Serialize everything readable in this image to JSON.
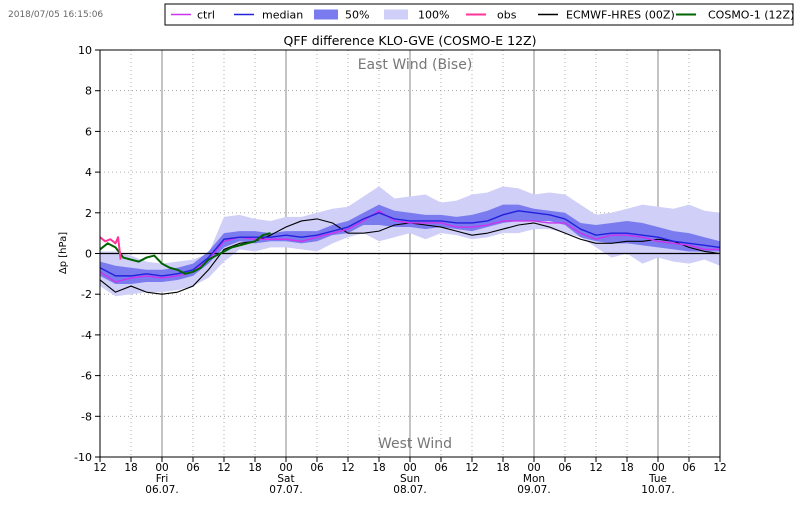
{
  "timestamp": "2018/07/05 16:15:06",
  "chart_data": {
    "type": "line",
    "title": "QFF difference KLO-GVE (COSMO-E 12Z)",
    "xlabel": "",
    "ylabel": "Δp [hPa]",
    "ylim": [
      -10,
      10
    ],
    "xlim_hours": [
      0,
      120
    ],
    "grid": true,
    "legend_position": "top",
    "annotations": {
      "top": "East Wind (Bise)",
      "bottom": "West Wind"
    },
    "y_ticks": [
      -10,
      -8,
      -6,
      -4,
      -2,
      0,
      2,
      4,
      6,
      8,
      10
    ],
    "x_ticks": [
      {
        "h": 0,
        "label": "12"
      },
      {
        "h": 6,
        "label": "18"
      },
      {
        "h": 12,
        "label": "00",
        "day": "Fri",
        "date": "06.07."
      },
      {
        "h": 18,
        "label": "06"
      },
      {
        "h": 24,
        "label": "12"
      },
      {
        "h": 30,
        "label": "18"
      },
      {
        "h": 36,
        "label": "00",
        "day": "Sat",
        "date": "07.07."
      },
      {
        "h": 42,
        "label": "06"
      },
      {
        "h": 48,
        "label": "12"
      },
      {
        "h": 54,
        "label": "18"
      },
      {
        "h": 60,
        "label": "00",
        "day": "Sun",
        "date": "08.07."
      },
      {
        "h": 66,
        "label": "06"
      },
      {
        "h": 72,
        "label": "12"
      },
      {
        "h": 78,
        "label": "18"
      },
      {
        "h": 84,
        "label": "00",
        "day": "Mon",
        "date": "09.07."
      },
      {
        "h": 90,
        "label": "06"
      },
      {
        "h": 96,
        "label": "12"
      },
      {
        "h": 102,
        "label": "18"
      },
      {
        "h": 108,
        "label": "00",
        "day": "Tue",
        "date": "10.07."
      },
      {
        "h": 114,
        "label": "06"
      },
      {
        "h": 120,
        "label": "12"
      }
    ],
    "legend": [
      {
        "key": "ctrl",
        "label": "ctrl",
        "kind": "line",
        "color": "#cc33ee"
      },
      {
        "key": "median",
        "label": "median",
        "kind": "line",
        "color": "#2222dd"
      },
      {
        "key": "p50",
        "label": "50%",
        "kind": "patch",
        "color": "#7b7bf0"
      },
      {
        "key": "p100",
        "label": "100%",
        "kind": "patch",
        "color": "#cfcff8"
      },
      {
        "key": "obs",
        "label": "obs",
        "kind": "line",
        "color": "#ff3399"
      },
      {
        "key": "ecmwf",
        "label": "ECMWF-HRES (00Z)",
        "kind": "line",
        "color": "#000000"
      },
      {
        "key": "cosmo1",
        "label": "COSMO-1 (12Z)",
        "kind": "line",
        "color": "#006400"
      }
    ],
    "series": [
      {
        "name": "100% band",
        "x": [
          0,
          3,
          6,
          9,
          12,
          15,
          18,
          21,
          24,
          27,
          30,
          33,
          36,
          39,
          42,
          45,
          48,
          51,
          54,
          57,
          60,
          63,
          66,
          69,
          72,
          75,
          78,
          81,
          84,
          87,
          90,
          93,
          96,
          99,
          102,
          105,
          108,
          111,
          114,
          117,
          120
        ],
        "low": [
          -1.6,
          -2.1,
          -2.0,
          -1.9,
          -1.9,
          -1.8,
          -1.6,
          -1.2,
          -0.4,
          0.2,
          0.1,
          0.3,
          0.3,
          0.2,
          0.1,
          0.5,
          0.8,
          1.0,
          0.6,
          0.8,
          1.0,
          0.7,
          1.0,
          0.9,
          0.7,
          0.8,
          1.0,
          1.0,
          1.2,
          1.2,
          1.0,
          0.8,
          0.3,
          -0.2,
          0.0,
          -0.5,
          -0.2,
          -0.4,
          -0.5,
          -0.3,
          -0.6
        ],
        "high": [
          0.1,
          0.1,
          -0.1,
          -0.4,
          -0.5,
          -0.4,
          -0.3,
          0.0,
          1.8,
          1.9,
          1.7,
          1.6,
          1.8,
          1.8,
          2.0,
          2.2,
          2.3,
          2.8,
          3.3,
          2.7,
          2.8,
          2.9,
          2.5,
          2.6,
          2.9,
          3.0,
          3.3,
          3.2,
          2.9,
          3.0,
          2.9,
          2.4,
          1.9,
          2.0,
          2.2,
          2.4,
          2.3,
          2.2,
          2.4,
          2.1,
          2.0
        ]
      },
      {
        "name": "50% band",
        "x": [
          0,
          3,
          6,
          9,
          12,
          15,
          18,
          21,
          24,
          27,
          30,
          33,
          36,
          39,
          42,
          45,
          48,
          51,
          54,
          57,
          60,
          63,
          66,
          69,
          72,
          75,
          78,
          81,
          84,
          87,
          90,
          93,
          96,
          99,
          102,
          105,
          108,
          111,
          114,
          117,
          120
        ],
        "low": [
          -1.1,
          -1.5,
          -1.5,
          -1.4,
          -1.4,
          -1.3,
          -1.1,
          -0.5,
          0.3,
          0.6,
          0.5,
          0.6,
          0.6,
          0.5,
          0.6,
          0.9,
          1.0,
          1.4,
          1.4,
          1.3,
          1.3,
          1.2,
          1.3,
          1.2,
          1.1,
          1.3,
          1.5,
          1.6,
          1.6,
          1.6,
          1.4,
          0.8,
          0.6,
          0.5,
          0.5,
          0.4,
          0.3,
          0.2,
          0.1,
          0.1,
          0.1
        ],
        "high": [
          -0.4,
          -0.6,
          -0.7,
          -0.8,
          -0.8,
          -0.7,
          -0.5,
          0.1,
          1.0,
          1.1,
          1.1,
          1.0,
          1.1,
          1.1,
          1.1,
          1.4,
          1.6,
          2.0,
          2.4,
          2.1,
          2.0,
          1.9,
          1.9,
          1.8,
          1.9,
          2.1,
          2.4,
          2.4,
          2.2,
          2.1,
          2.0,
          1.5,
          1.4,
          1.5,
          1.6,
          1.5,
          1.3,
          1.1,
          1.0,
          0.8,
          0.6
        ]
      },
      {
        "name": "median",
        "x": [
          0,
          3,
          6,
          9,
          12,
          15,
          18,
          21,
          24,
          27,
          30,
          33,
          36,
          39,
          42,
          45,
          48,
          51,
          54,
          57,
          60,
          63,
          66,
          69,
          72,
          75,
          78,
          81,
          84,
          87,
          90,
          93,
          96,
          99,
          102,
          105,
          108,
          111,
          114,
          117,
          120
        ],
        "values": [
          -0.7,
          -1.1,
          -1.1,
          -1.0,
          -1.1,
          -1.0,
          -0.8,
          -0.2,
          0.7,
          0.8,
          0.8,
          0.8,
          0.9,
          0.8,
          0.9,
          1.1,
          1.3,
          1.7,
          2.0,
          1.7,
          1.6,
          1.6,
          1.6,
          1.5,
          1.5,
          1.6,
          1.9,
          2.1,
          2.0,
          1.9,
          1.7,
          1.2,
          0.9,
          1.0,
          1.0,
          0.9,
          0.8,
          0.6,
          0.5,
          0.4,
          0.3
        ]
      },
      {
        "name": "ctrl",
        "x": [
          0,
          3,
          6,
          9,
          12,
          15,
          18,
          21,
          24,
          27,
          30,
          33,
          36,
          39,
          42,
          45,
          48,
          51,
          54,
          57,
          60,
          63,
          66,
          69,
          72,
          75,
          78,
          81,
          84,
          87,
          90,
          93,
          96,
          99,
          102,
          105,
          108,
          111,
          114,
          117,
          120
        ],
        "values": [
          -0.9,
          -1.4,
          -1.2,
          -1.1,
          -1.2,
          -1.1,
          -0.9,
          -0.3,
          0.6,
          0.8,
          0.7,
          0.7,
          0.7,
          0.6,
          0.8,
          1.0,
          1.2,
          1.6,
          2.1,
          1.6,
          1.5,
          1.5,
          1.5,
          1.3,
          1.3,
          1.4,
          1.6,
          1.6,
          1.6,
          1.5,
          1.5,
          1.0,
          0.7,
          0.9,
          0.9,
          0.8,
          0.6,
          0.5,
          0.4,
          0.2,
          0.2
        ]
      },
      {
        "name": "obs",
        "x": [
          0,
          1,
          2,
          3,
          3.5,
          4
        ],
        "values": [
          0.8,
          0.6,
          0.7,
          0.5,
          0.8,
          -0.3
        ]
      },
      {
        "name": "ECMWF-HRES (00Z)",
        "x": [
          0,
          3,
          6,
          9,
          12,
          15,
          18,
          21,
          24,
          27,
          30,
          33,
          36,
          39,
          42,
          45,
          48,
          51,
          54,
          57,
          60,
          63,
          66,
          69,
          72,
          75,
          78,
          81,
          84,
          87,
          90,
          93,
          96,
          99,
          102,
          105,
          108,
          111,
          114,
          117,
          120
        ],
        "values": [
          -1.3,
          -1.9,
          -1.6,
          -1.9,
          -2.0,
          -1.9,
          -1.6,
          -0.8,
          0.2,
          0.5,
          0.6,
          0.9,
          1.3,
          1.6,
          1.7,
          1.5,
          1.0,
          1.0,
          1.1,
          1.4,
          1.5,
          1.4,
          1.3,
          1.1,
          0.9,
          1.0,
          1.2,
          1.4,
          1.5,
          1.3,
          1.0,
          0.7,
          0.5,
          0.5,
          0.6,
          0.6,
          0.7,
          0.6,
          0.3,
          0.1,
          0.0
        ]
      },
      {
        "name": "COSMO-1 (12Z)",
        "x": [
          0,
          1.5,
          3,
          4.5,
          6,
          7.5,
          9,
          10.5,
          12,
          13.5,
          15,
          16.5,
          18,
          19.5,
          21,
          22.5,
          24,
          25.5,
          27,
          28.5,
          30,
          31.5,
          33
        ],
        "values": [
          0.2,
          0.5,
          0.3,
          -0.2,
          -0.3,
          -0.4,
          -0.2,
          -0.1,
          -0.5,
          -0.7,
          -0.8,
          -1.0,
          -0.9,
          -0.7,
          -0.3,
          -0.1,
          0.1,
          0.3,
          0.4,
          0.5,
          0.6,
          0.9,
          1.0
        ]
      }
    ]
  }
}
